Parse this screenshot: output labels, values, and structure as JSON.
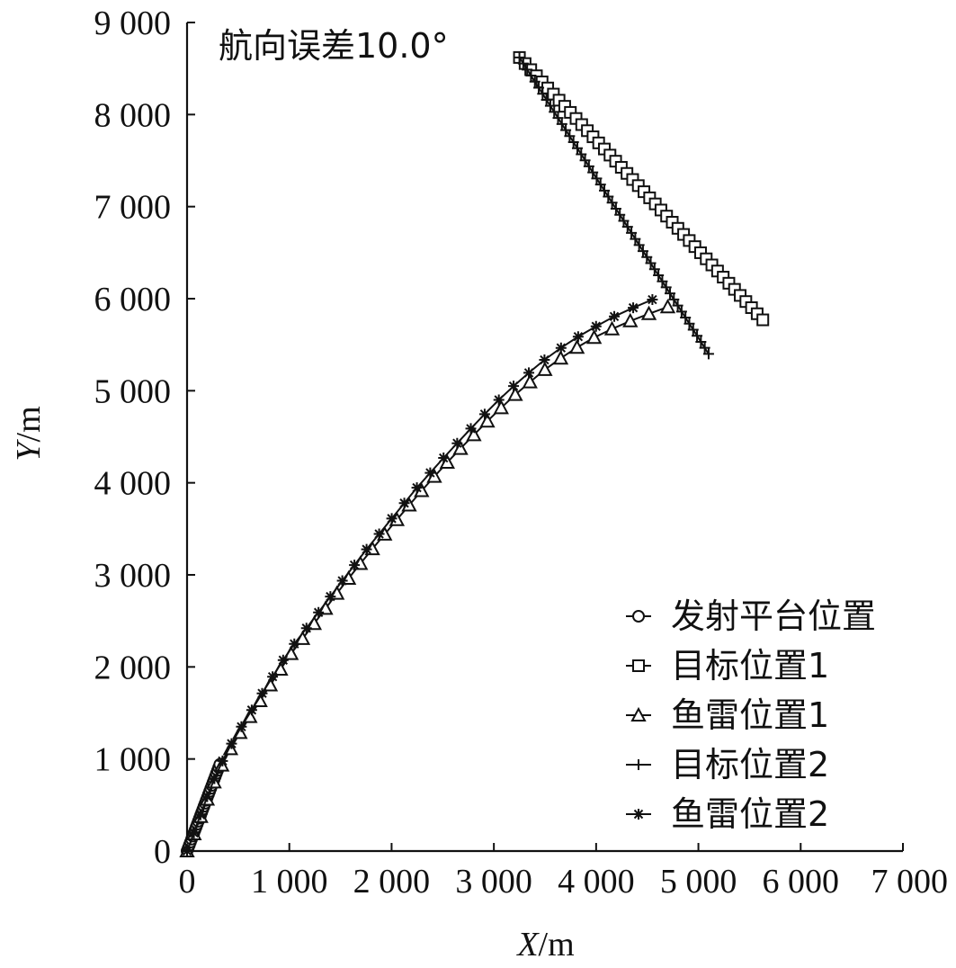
{
  "chart_data": {
    "type": "line",
    "title": "",
    "annotation": "航向误差10.0°",
    "xlabel_italic": "X",
    "xlabel_unit": "/m",
    "ylabel_italic": "Y",
    "ylabel_unit": "/m",
    "xlim": [
      0,
      7000
    ],
    "ylim": [
      0,
      9000
    ],
    "xticks": [
      {
        "value": 0,
        "label": "0"
      },
      {
        "value": 1000,
        "label": "1 000"
      },
      {
        "value": 2000,
        "label": "2 000"
      },
      {
        "value": 3000,
        "label": "3 000"
      },
      {
        "value": 4000,
        "label": "4 000"
      },
      {
        "value": 5000,
        "label": "5 000"
      },
      {
        "value": 6000,
        "label": "6 000"
      },
      {
        "value": 7000,
        "label": "7 000"
      }
    ],
    "yticks": [
      {
        "value": 0,
        "label": "0"
      },
      {
        "value": 1000,
        "label": "1 000"
      },
      {
        "value": 2000,
        "label": "2 000"
      },
      {
        "value": 3000,
        "label": "3 000"
      },
      {
        "value": 4000,
        "label": "4 000"
      },
      {
        "value": 5000,
        "label": "5 000"
      },
      {
        "value": 6000,
        "label": "6 000"
      },
      {
        "value": 7000,
        "label": "7 000"
      },
      {
        "value": 8000,
        "label": "8 000"
      },
      {
        "value": 9000,
        "label": "9 000"
      }
    ],
    "grid": false,
    "legend_position": "bottom-right",
    "series": [
      {
        "name": "发射平台位置",
        "marker": "circle",
        "start": [
          0,
          0
        ],
        "end": [
          320,
          940
        ],
        "count": 30
      },
      {
        "name": "目标位置1",
        "marker": "square",
        "start": [
          3250,
          8620
        ],
        "end": [
          5630,
          5770
        ],
        "count": 44
      },
      {
        "name": "鱼雷位置1",
        "marker": "triangle",
        "x": [
          0,
          40,
          90,
          150,
          210,
          280,
          360,
          470,
          620,
          800,
          1000,
          1250,
          1500,
          1750,
          2000,
          2250,
          2500,
          2750,
          3000,
          3250,
          3500,
          3750,
          4000,
          4250,
          4450,
          4600,
          4700
        ],
        "y": [
          0,
          100,
          250,
          420,
          600,
          790,
          980,
          1200,
          1470,
          1780,
          2120,
          2480,
          2850,
          3200,
          3530,
          3860,
          4170,
          4460,
          4740,
          5000,
          5230,
          5430,
          5590,
          5720,
          5810,
          5870,
          5910
        ],
        "count": 40
      },
      {
        "name": "目标位置2",
        "marker": "plus",
        "start": [
          3250,
          8620
        ],
        "end": [
          5100,
          5400
        ],
        "count": 50
      },
      {
        "name": "鱼雷位置2",
        "marker": "star",
        "x": [
          0,
          40,
          90,
          150,
          210,
          280,
          360,
          470,
          620,
          800,
          1000,
          1250,
          1500,
          1750,
          2000,
          2250,
          2500,
          2750,
          3000,
          3250,
          3500,
          3750,
          4000,
          4200,
          4400,
          4550
        ],
        "y": [
          0,
          110,
          270,
          450,
          630,
          820,
          1010,
          1240,
          1510,
          1830,
          2180,
          2540,
          2910,
          3270,
          3610,
          3950,
          4260,
          4560,
          4850,
          5110,
          5340,
          5540,
          5700,
          5820,
          5920,
          5990
        ],
        "count": 38
      }
    ]
  }
}
